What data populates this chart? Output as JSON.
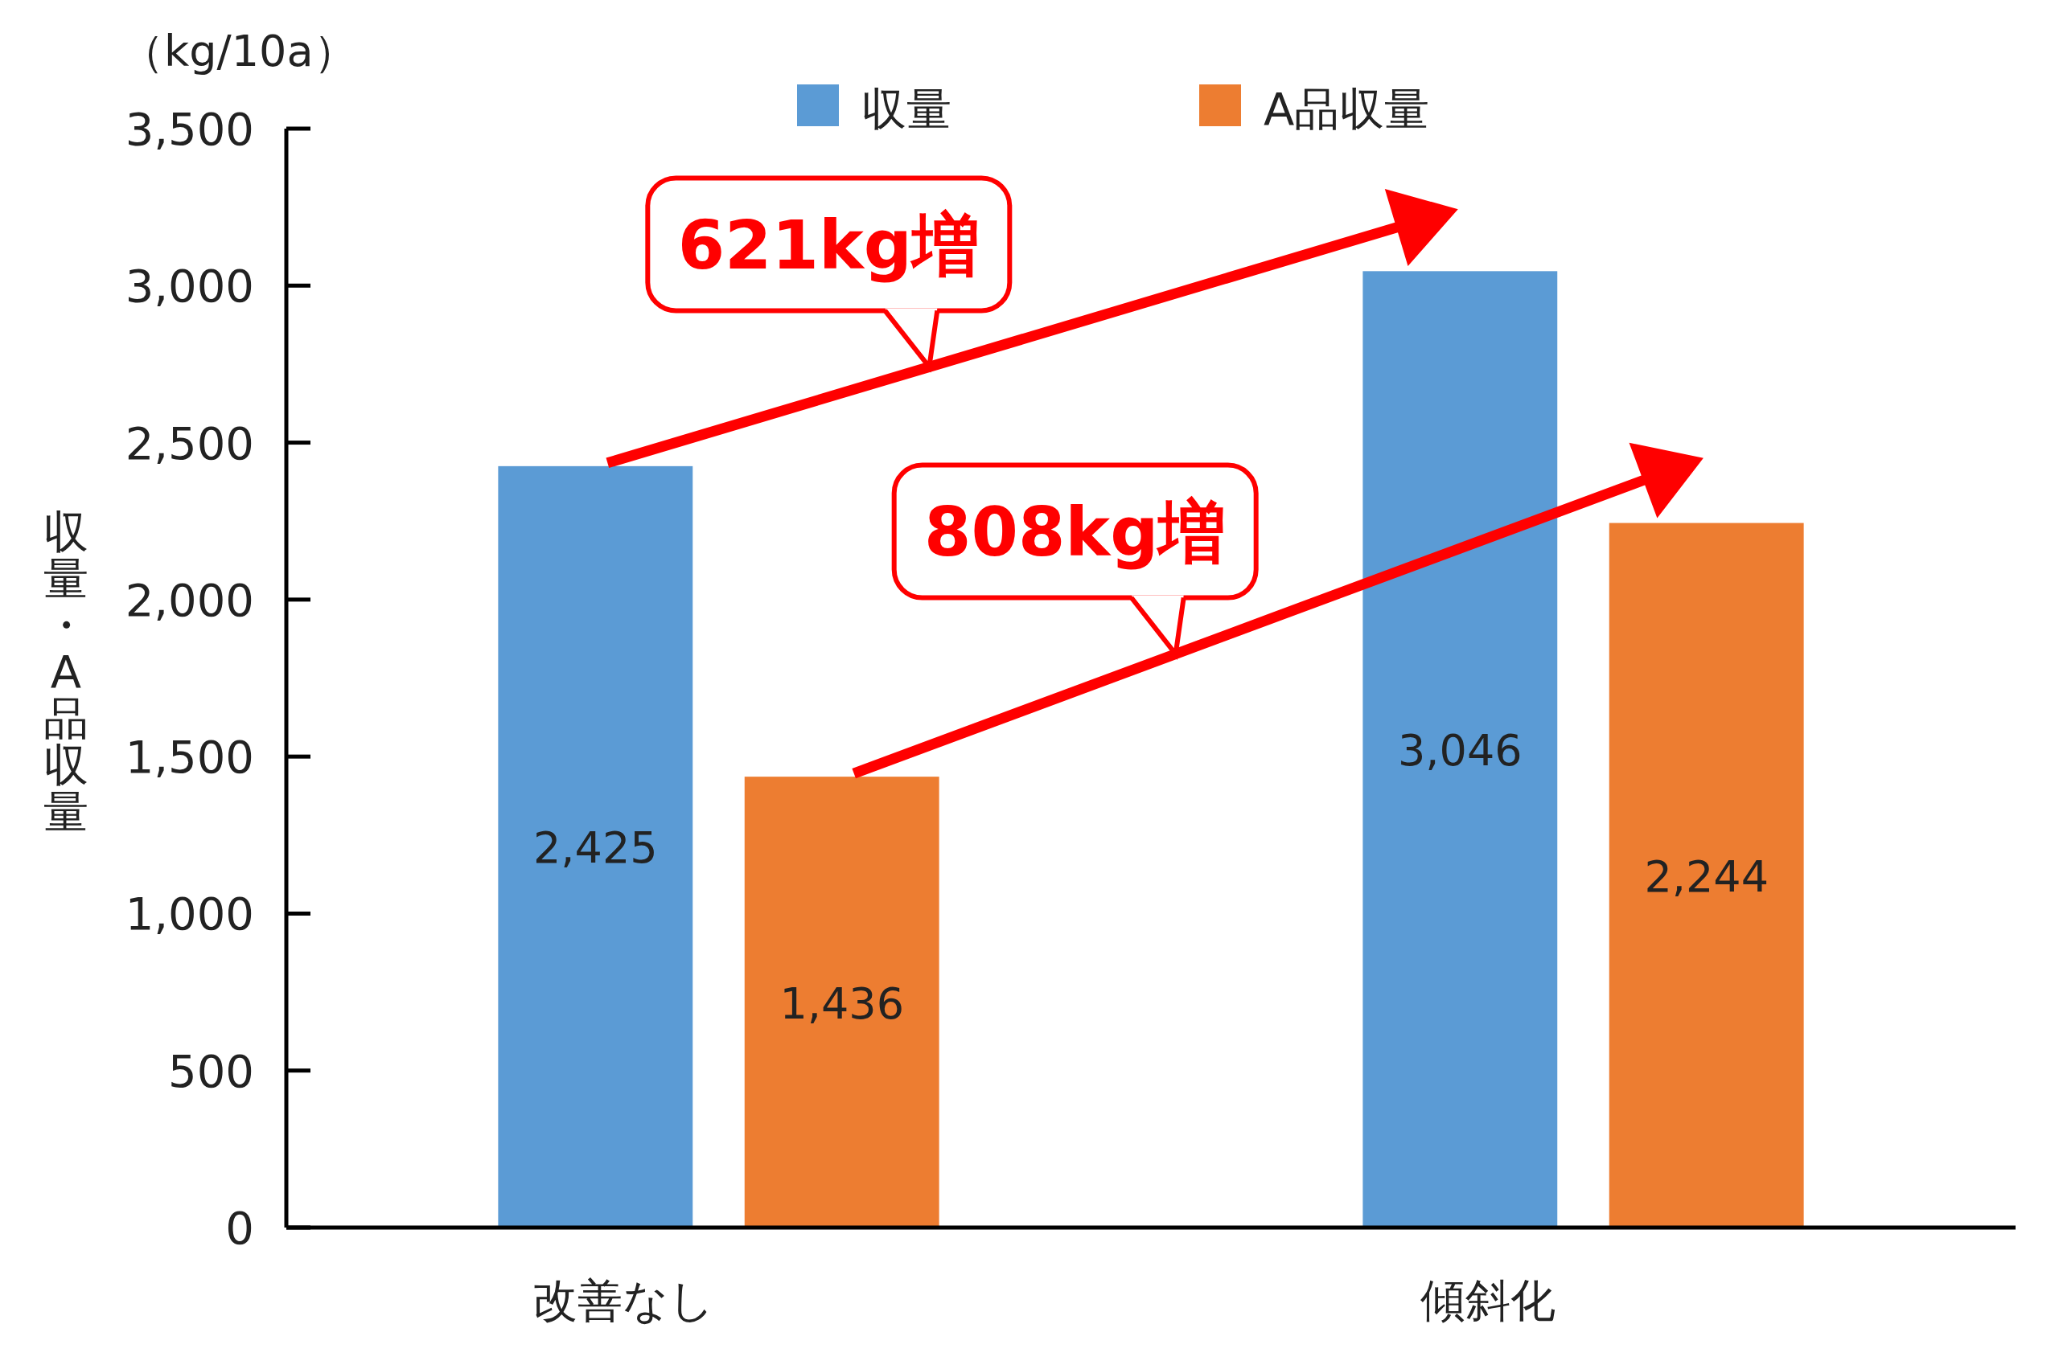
{
  "chart_data": {
    "type": "bar",
    "ylabel": "収量・A品収量",
    "categories": [
      "改善なし",
      "傾斜化"
    ],
    "series": [
      {
        "name": "収量",
        "color": "#5b9bd5",
        "values": [
          2425,
          3046
        ],
        "value_labels": [
          "2,425",
          "3,046"
        ]
      },
      {
        "name": "A品収量",
        "color": "#ed7d31",
        "values": [
          1436,
          2244
        ],
        "value_labels": [
          "1,436",
          "2,244"
        ]
      }
    ],
    "ylim": [
      0,
      3500
    ],
    "yticks": [
      0,
      500,
      {
        "value": 1000,
        "label": "1,000"
      },
      {
        "value": 1500,
        "label": "1,500"
      },
      {
        "value": 2000,
        "label": "2,000"
      },
      {
        "value": 2500,
        "label": "2,500"
      },
      {
        "value": 3000,
        "label": "3,000"
      },
      {
        "value": 3500,
        "label": "3,500"
      }
    ],
    "legend": "top",
    "grid": false,
    "annotations": [
      "621kg増",
      "808kg増",
      "（kg/10a）"
    ]
  }
}
